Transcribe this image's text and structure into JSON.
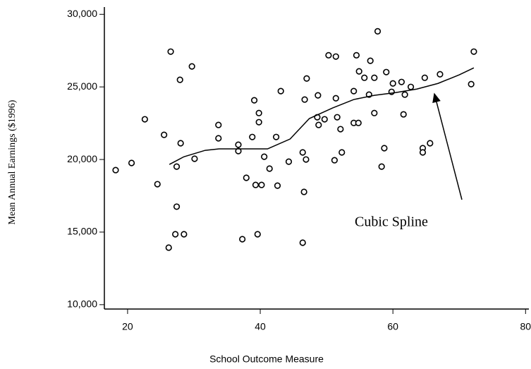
{
  "chart_data": {
    "type": "scatter",
    "x_label": "School Outcome Measure",
    "y_label": "Mean Annual Earnings ($1996)",
    "annotation": "Cubic Spline",
    "color": "#000000",
    "xlim": [
      16.5,
      80.5
    ],
    "ylim": [
      9700,
      30500
    ],
    "xticks": [
      20,
      40,
      60,
      80
    ],
    "yticks": [
      {
        "value": 10000,
        "label": "10,000"
      },
      {
        "value": 15000,
        "label": "15,000"
      },
      {
        "value": 20000,
        "label": "20,000"
      },
      {
        "value": 25000,
        "label": "25,000"
      },
      {
        "value": 30000,
        "label": "30,000"
      }
    ],
    "x": [
      18.2,
      20.6,
      22.6,
      24.5,
      25.5,
      26.5,
      26.2,
      27.4,
      27.4,
      27.2,
      27.9,
      28.0,
      28.5,
      29.7,
      30.1,
      33.7,
      33.7,
      36.7,
      36.7,
      37.3,
      37.9,
      38.8,
      39.1,
      39.3,
      39.6,
      39.8,
      39.8,
      40.2,
      40.6,
      41.4,
      42.4,
      42.6,
      43.1,
      44.3,
      46.6,
      46.4,
      46.4,
      46.7,
      47.0,
      46.9,
      48.7,
      48.8,
      48.6,
      49.7,
      50.3,
      51.4,
      51.2,
      51.4,
      51.6,
      52.1,
      52.3,
      54.1,
      54.5,
      54.1,
      54.8,
      54.9,
      55.7,
      56.4,
      56.6,
      57.2,
      57.2,
      57.7,
      58.3,
      58.7,
      59.0,
      59.8,
      60.0,
      61.3,
      61.6,
      61.8,
      62.7,
      64.5,
      64.5,
      64.8,
      65.6,
      67.1,
      71.8,
      72.2
    ],
    "y": [
      19270,
      19760,
      22770,
      18300,
      21700,
      27430,
      13930,
      19510,
      16750,
      14850,
      25490,
      21120,
      14850,
      26410,
      20050,
      22380,
      21460,
      21020,
      20580,
      14510,
      18740,
      21550,
      24080,
      18250,
      14850,
      23200,
      22570,
      18250,
      20190,
      19370,
      21550,
      18200,
      24710,
      19850,
      17770,
      14270,
      20490,
      24130,
      25580,
      20000,
      24420,
      22380,
      22910,
      22770,
      27180,
      27090,
      19950,
      24220,
      22910,
      22090,
      20490,
      24710,
      27180,
      22520,
      22520,
      26070,
      25630,
      24470,
      26800,
      25630,
      23200,
      28830,
      19510,
      20780,
      26020,
      24660,
      25240,
      25340,
      23110,
      24470,
      25000,
      20780,
      20490,
      25630,
      21120,
      25870,
      25190,
      27430
    ],
    "spline": {
      "x": [
        26.3,
        28.5,
        31.7,
        33.8,
        37.6,
        41.1,
        44.5,
        47.4,
        50.9,
        54.1,
        57.2,
        60.4,
        63.6,
        66.8,
        70.0,
        72.2
      ],
      "y": [
        19660,
        20190,
        20630,
        20730,
        20730,
        20730,
        21410,
        22820,
        23550,
        24130,
        24420,
        24610,
        24850,
        25240,
        25830,
        26310
      ]
    }
  }
}
